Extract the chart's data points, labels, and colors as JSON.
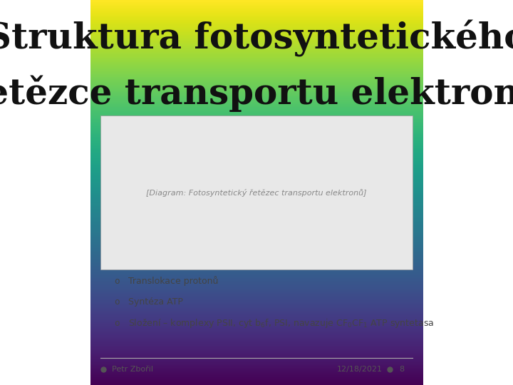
{
  "title_line1": "Struktura fotosyntetického",
  "title_line2": "řetězce transportu elektronů",
  "bullet_items": [
    "Translokace protonů",
    "Syntéza ATP",
    "Složení – komplexy PSII, cyt b$_6$f, PSI, navazuje CF$_0$CF$_1$ ATP syntetasa"
  ],
  "footer_left": "Petr Zbořil",
  "footer_right": "12/18/2021",
  "footer_page": "8",
  "bullet_color": "#444444",
  "footer_color": "#555555",
  "title_color": "#111111",
  "dot_color": "#555555",
  "line_color": "#aaaaaa"
}
